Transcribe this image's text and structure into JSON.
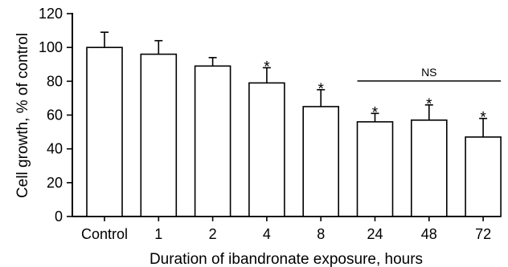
{
  "chart_data": {
    "type": "bar",
    "title": "",
    "xlabel": "Duration of ibandronate exposure, hours",
    "ylabel": "Cell growth, % of control",
    "ylim": [
      0,
      120
    ],
    "yticks": [
      0,
      20,
      40,
      60,
      80,
      100,
      120
    ],
    "categories": [
      "Control",
      "1",
      "2",
      "4",
      "8",
      "24",
      "48",
      "72"
    ],
    "values": [
      100,
      96,
      89,
      79,
      65,
      56,
      57,
      47
    ],
    "error_upper": [
      109,
      104,
      94,
      88,
      75,
      61,
      66,
      58
    ],
    "significance": [
      "",
      "",
      "",
      "*",
      "*",
      "*",
      "*",
      "*"
    ],
    "annotation": {
      "text": "NS",
      "from": "24",
      "to": "72"
    },
    "grid": false,
    "legend": "none",
    "bar_color": "#ffffff",
    "edge_color": "#000000"
  }
}
